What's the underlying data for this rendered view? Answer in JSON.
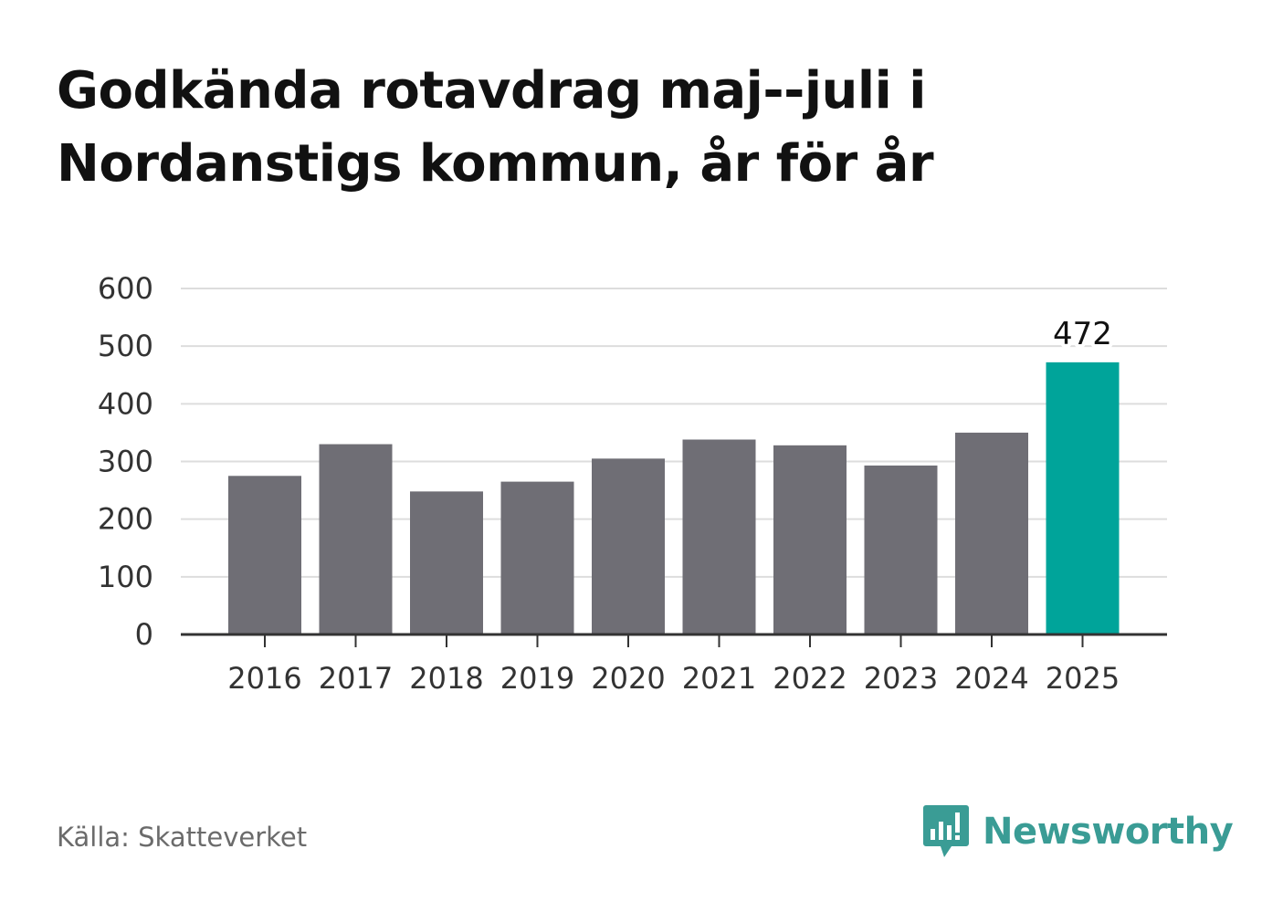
{
  "title_line1": "Godkända rotavdrag maj--juli i",
  "title_line2": "Nordanstigs kommun, år för år",
  "source": "Källa: Skatteverket",
  "brand": "Newsworthy",
  "colors": {
    "bar": "#6f6e75",
    "highlight": "#00a49a",
    "grid": "#dddddd",
    "axis": "#333333",
    "brand": "#3a9c95"
  },
  "chart_data": {
    "type": "bar",
    "title": "Godkända rotavdrag maj--juli i Nordanstigs kommun, år för år",
    "xlabel": "",
    "ylabel": "",
    "categories": [
      "2016",
      "2017",
      "2018",
      "2019",
      "2020",
      "2021",
      "2022",
      "2023",
      "2024",
      "2025"
    ],
    "values": [
      275,
      330,
      248,
      265,
      305,
      338,
      328,
      293,
      350,
      472
    ],
    "highlight_index": 9,
    "data_labels": [
      {
        "index": 9,
        "text": "472"
      }
    ],
    "ylim": [
      0,
      600
    ],
    "yticks": [
      0,
      100,
      200,
      300,
      400,
      500,
      600
    ],
    "grid": true,
    "legend": "none"
  }
}
